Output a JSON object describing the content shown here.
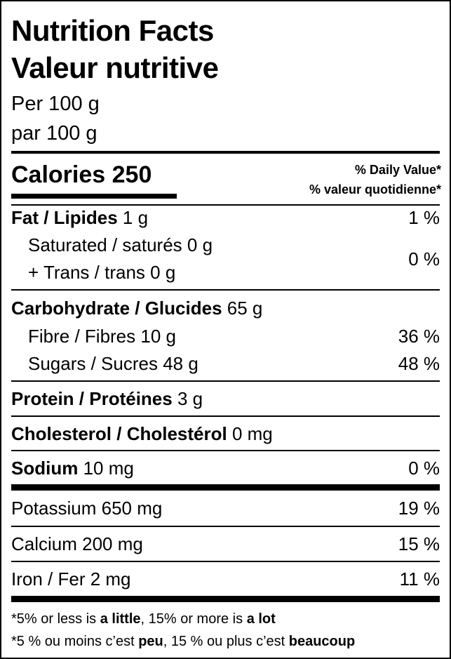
{
  "header": {
    "title_en": "Nutrition Facts",
    "title_fr": "Valeur nutritive",
    "serving_en": "Per 100 g",
    "serving_fr": "par 100 g"
  },
  "calories": {
    "label": "Calories",
    "value": "250"
  },
  "daily_value_header": [
    "% Daily Value*",
    "% valeur quotidienne*"
  ],
  "nutrients": [
    {
      "name": "Fat / Lipides",
      "amount": "1 g",
      "dv": "1 %"
    },
    {
      "lines": [
        "Saturated / saturés 0 g",
        "+ Trans / trans 0 g"
      ],
      "dv": "0 %"
    },
    {
      "name": "Carbohydrate / Glucides",
      "amount": "65 g"
    },
    {
      "name": "Fibre / Fibres 10 g",
      "dv": "36 %"
    },
    {
      "name": "Sugars / Sucres 48 g",
      "dv": "48 %"
    },
    {
      "name": "Protein / Protéines",
      "amount": "3 g"
    },
    {
      "name": "Cholesterol / Cholestérol",
      "amount": "0 mg"
    },
    {
      "name": "Sodium",
      "amount": "10 mg",
      "dv": "0 %"
    },
    {
      "name": "Potassium 650 mg",
      "dv": "19 %"
    },
    {
      "name": "Calcium 200 mg",
      "dv": "15 %"
    },
    {
      "name": "Iron / Fer 2 mg",
      "dv": "11 %"
    }
  ],
  "footnotes": [
    [
      "*5% or less is ",
      "a little",
      ", 15% or more is ",
      "a lot"
    ],
    [
      "*5 % ou moins c’est ",
      "peu",
      ", 15 % ou plus c’est ",
      "beaucoup"
    ]
  ]
}
